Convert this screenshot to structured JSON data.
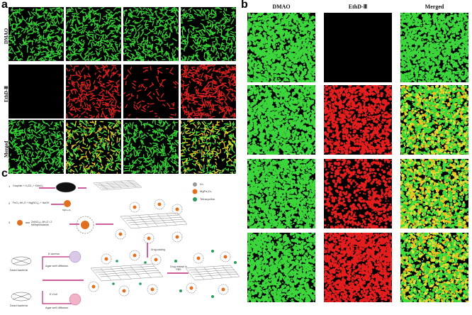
{
  "panel_a": {
    "label": "a",
    "row_labels": [
      "DMAO",
      "EthD-Ⅲ",
      "Merged"
    ],
    "sublabels": [
      "a",
      "b",
      "c",
      "d"
    ]
  },
  "panel_b": {
    "label": "b",
    "col_labels": [
      "DMAO",
      "EthD-Ⅲ",
      "Merged"
    ],
    "row_sublabels": [
      "a",
      "b",
      "c",
      "d"
    ]
  },
  "panel_c": {
    "label": "c",
    "steps": [
      "1",
      "2",
      "3"
    ],
    "step1_text": "Graphite + H₂SO₄ + KMnO₄",
    "step2_text": "FeCl₃·6H₂O + Mg(NO₃)₂ + NaOH",
    "step3_text": "Zn(NO₃)₂·6H₂O / 2-Methylimidazole",
    "legend": [
      "Zn",
      "MgFe₂O₄",
      "Tetracycline"
    ],
    "drug_loading": "Drug loading",
    "bacteria_1": "E.aureus",
    "bacteria_2": "E.Coli",
    "agar_1": "Agar well diffusion",
    "agar_2": "Agar well diffusion",
    "dead_1": "Dead bacteria",
    "dead_2": "Dead bacteria",
    "release": "Drug release in PBS",
    "mgfe_label": "MgFe₂O₄"
  }
}
